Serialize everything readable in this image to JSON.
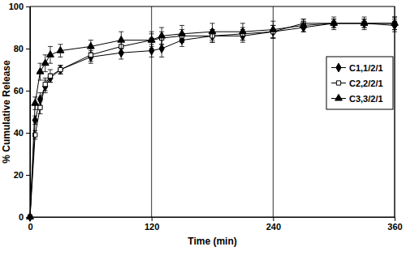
{
  "chart_data": {
    "type": "line",
    "x_label": "Time (min)",
    "y_label": "% Cumulative Release",
    "x": [
      0,
      5,
      10,
      15,
      20,
      30,
      60,
      90,
      120,
      130,
      150,
      180,
      210,
      240,
      270,
      300,
      330,
      360
    ],
    "series": [
      {
        "name": "C1,1/2/1",
        "color": "#000000",
        "marker": "diamond",
        "values": [
          0,
          46,
          56,
          62,
          66,
          70,
          76,
          78,
          79,
          80,
          84,
          86,
          86,
          88,
          90,
          92,
          92,
          91
        ],
        "errors": [
          0,
          2,
          3,
          3,
          2,
          2,
          3,
          3,
          3,
          4,
          3,
          3,
          3,
          3,
          2,
          2,
          2,
          3
        ]
      },
      {
        "name": "C2,2/2/1",
        "color": "#000000",
        "marker": "square-open",
        "values": [
          0,
          39,
          52,
          63,
          67,
          70,
          77,
          81,
          84,
          85,
          86,
          86,
          87,
          88,
          92,
          92,
          92,
          92
        ],
        "errors": [
          0,
          2,
          3,
          3,
          3,
          2,
          3,
          3,
          3,
          3,
          3,
          3,
          3,
          3,
          2,
          2,
          2,
          3
        ]
      },
      {
        "name": "C3,3/2/1",
        "color": "#000000",
        "marker": "triangle",
        "values": [
          0,
          54,
          69,
          73,
          77,
          79,
          81,
          84,
          84,
          86,
          87,
          88,
          88,
          89,
          91,
          92,
          92,
          92
        ],
        "errors": [
          0,
          3,
          4,
          4,
          4,
          3,
          3,
          4,
          4,
          4,
          4,
          4,
          4,
          4,
          3,
          3,
          3,
          3
        ]
      }
    ],
    "xlim": [
      0,
      360
    ],
    "xticks": [
      0,
      120,
      240,
      360
    ],
    "ylim": [
      0,
      100
    ],
    "yticks": [
      0,
      20,
      40,
      60,
      80,
      100
    ],
    "grid": "x",
    "legend": "right"
  }
}
